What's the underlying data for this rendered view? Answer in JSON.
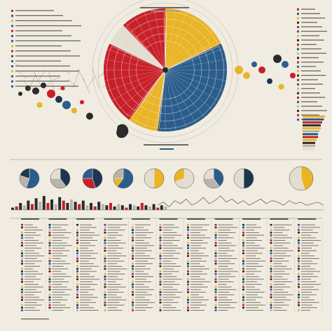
{
  "palette": {
    "background": "#f1ece1",
    "ink": "#2b2b2b",
    "red": "#c8202a",
    "yellow": "#e9b425",
    "blue": "#2a5d8c",
    "navy": "#1d3550",
    "grey": "#b9b4aa",
    "light": "#e3ddd0"
  },
  "header": {
    "title": "",
    "subtitle": ""
  },
  "chart_data": [
    {
      "type": "pie",
      "id": "main-radial",
      "title": "",
      "slices": [
        {
          "color": "#e9b425",
          "value": 18
        },
        {
          "color": "#2a5d8c",
          "value": 34
        },
        {
          "color": "#e9b425",
          "value": 8
        },
        {
          "color": "#c8202a",
          "value": 22
        },
        {
          "color": "#e3ddd0",
          "value": 6
        },
        {
          "color": "#c8202a",
          "value": 12
        }
      ]
    },
    {
      "type": "pie",
      "id": "small-pies-row",
      "pies": [
        {
          "slices": [
            {
              "color": "#2a5d8c",
              "value": 55
            },
            {
              "color": "#b9b4aa",
              "value": 25
            },
            {
              "color": "#1d3550",
              "value": 20
            }
          ]
        },
        {
          "slices": [
            {
              "color": "#1d3550",
              "value": 40
            },
            {
              "color": "#b9b4aa",
              "value": 35
            },
            {
              "color": "#e3ddd0",
              "value": 25
            }
          ]
        },
        {
          "slices": [
            {
              "color": "#1d3550",
              "value": 45
            },
            {
              "color": "#c8202a",
              "value": 30
            },
            {
              "color": "#2a5d8c",
              "value": 25
            }
          ]
        },
        {
          "slices": [
            {
              "color": "#2a5d8c",
              "value": 60
            },
            {
              "color": "#e9b425",
              "value": 15
            },
            {
              "color": "#b9b4aa",
              "value": 25
            }
          ]
        },
        {
          "slices": [
            {
              "color": "#e9b425",
              "value": 50
            },
            {
              "color": "#e3ddd0",
              "value": 50
            }
          ]
        },
        {
          "slices": [
            {
              "color": "#e3ddd0",
              "value": 70
            },
            {
              "color": "#e9b425",
              "value": 30
            }
          ]
        },
        {
          "slices": [
            {
              "color": "#2a5d8c",
              "value": 40
            },
            {
              "color": "#b9b4aa",
              "value": 35
            },
            {
              "color": "#e3ddd0",
              "value": 25
            }
          ]
        },
        {
          "slices": [
            {
              "color": "#1d3550",
              "value": 50
            },
            {
              "color": "#e3ddd0",
              "value": 50
            }
          ]
        },
        {
          "slices": [
            {
              "color": "#e9b425",
              "value": 45
            },
            {
              "color": "#e3ddd0",
              "value": 55
            }
          ]
        }
      ]
    },
    {
      "type": "bar",
      "id": "bar-strip",
      "values": [
        2,
        3,
        6,
        4,
        8,
        5,
        10,
        7,
        12,
        6,
        9,
        5,
        11,
        8,
        6,
        9,
        7,
        5,
        8,
        4,
        6,
        3,
        7,
        5,
        4,
        6,
        3,
        5,
        4,
        2,
        5,
        4,
        3,
        6,
        4,
        3,
        5,
        2,
        4,
        3
      ],
      "colors_cycle": [
        "#2b2b2b",
        "#c8202a",
        "#2b2b2b",
        "#b9b4aa"
      ]
    },
    {
      "type": "line",
      "id": "wave-strip",
      "values": [
        3,
        5,
        2,
        6,
        4,
        7,
        3,
        5,
        8,
        4,
        6,
        9,
        5,
        7,
        4,
        6,
        3,
        5,
        7,
        4,
        6,
        5,
        3,
        6,
        4,
        5,
        3,
        4,
        5,
        3
      ]
    },
    {
      "type": "scatter",
      "id": "bubble-cluster-left",
      "points": [
        {
          "x": 1,
          "y": 6,
          "r": 3,
          "c": "#2b2b2b"
        },
        {
          "x": 2,
          "y": 7,
          "r": 4,
          "c": "#2b2b2b"
        },
        {
          "x": 3,
          "y": 6.5,
          "r": 5,
          "c": "#2b2b2b"
        },
        {
          "x": 4,
          "y": 7.5,
          "r": 4,
          "c": "#2b2b2b"
        },
        {
          "x": 5,
          "y": 6,
          "r": 6,
          "c": "#c8202a"
        },
        {
          "x": 6,
          "y": 5,
          "r": 5,
          "c": "#1d3550"
        },
        {
          "x": 7,
          "y": 4,
          "r": 6,
          "c": "#2a5d8c"
        },
        {
          "x": 8,
          "y": 3,
          "r": 4,
          "c": "#e9b425"
        },
        {
          "x": 9,
          "y": 4.5,
          "r": 3,
          "c": "#c8202a"
        },
        {
          "x": 10,
          "y": 2,
          "r": 5,
          "c": "#2b2b2b"
        },
        {
          "x": 3.5,
          "y": 4,
          "r": 4,
          "c": "#e9b425"
        },
        {
          "x": 6.5,
          "y": 7,
          "r": 3,
          "c": "#c8202a"
        }
      ]
    },
    {
      "type": "scatter",
      "id": "bubble-cluster-right",
      "points": [
        {
          "x": 1,
          "y": 5,
          "r": 6,
          "c": "#e9b425"
        },
        {
          "x": 2,
          "y": 4,
          "r": 5,
          "c": "#e9b425"
        },
        {
          "x": 3,
          "y": 6,
          "r": 4,
          "c": "#2a5d8c"
        },
        {
          "x": 4,
          "y": 5,
          "r": 5,
          "c": "#c8202a"
        },
        {
          "x": 5,
          "y": 3,
          "r": 4,
          "c": "#1d3550"
        },
        {
          "x": 6,
          "y": 7,
          "r": 6,
          "c": "#2b2b2b"
        },
        {
          "x": 7,
          "y": 6,
          "r": 5,
          "c": "#2a5d8c"
        },
        {
          "x": 8,
          "y": 4,
          "r": 4,
          "c": "#c8202a"
        },
        {
          "x": 6.5,
          "y": 2,
          "r": 4,
          "c": "#e9b425"
        }
      ]
    },
    {
      "type": "bar",
      "id": "stacked-strip-right",
      "values": [
        10,
        9,
        8,
        7,
        7,
        6,
        5,
        5,
        4,
        3,
        3,
        2
      ],
      "colors": [
        "#e9b425",
        "#2a5d8c",
        "#c8202a",
        "#2b2b2b",
        "#e9b425",
        "#b9b4aa",
        "#2a5d8c",
        "#c8202a",
        "#e9b425",
        "#2b2b2b",
        "#b9b4aa",
        "#e3ddd0"
      ]
    },
    {
      "type": "table",
      "id": "legend-table",
      "columns": 11,
      "rows": 34,
      "swatch_colors": [
        "#c8202a",
        "#2a5d8c",
        "#e9b425",
        "#2b2b2b",
        "#b9b4aa",
        "#1d3550",
        "#e3ddd0"
      ]
    }
  ]
}
